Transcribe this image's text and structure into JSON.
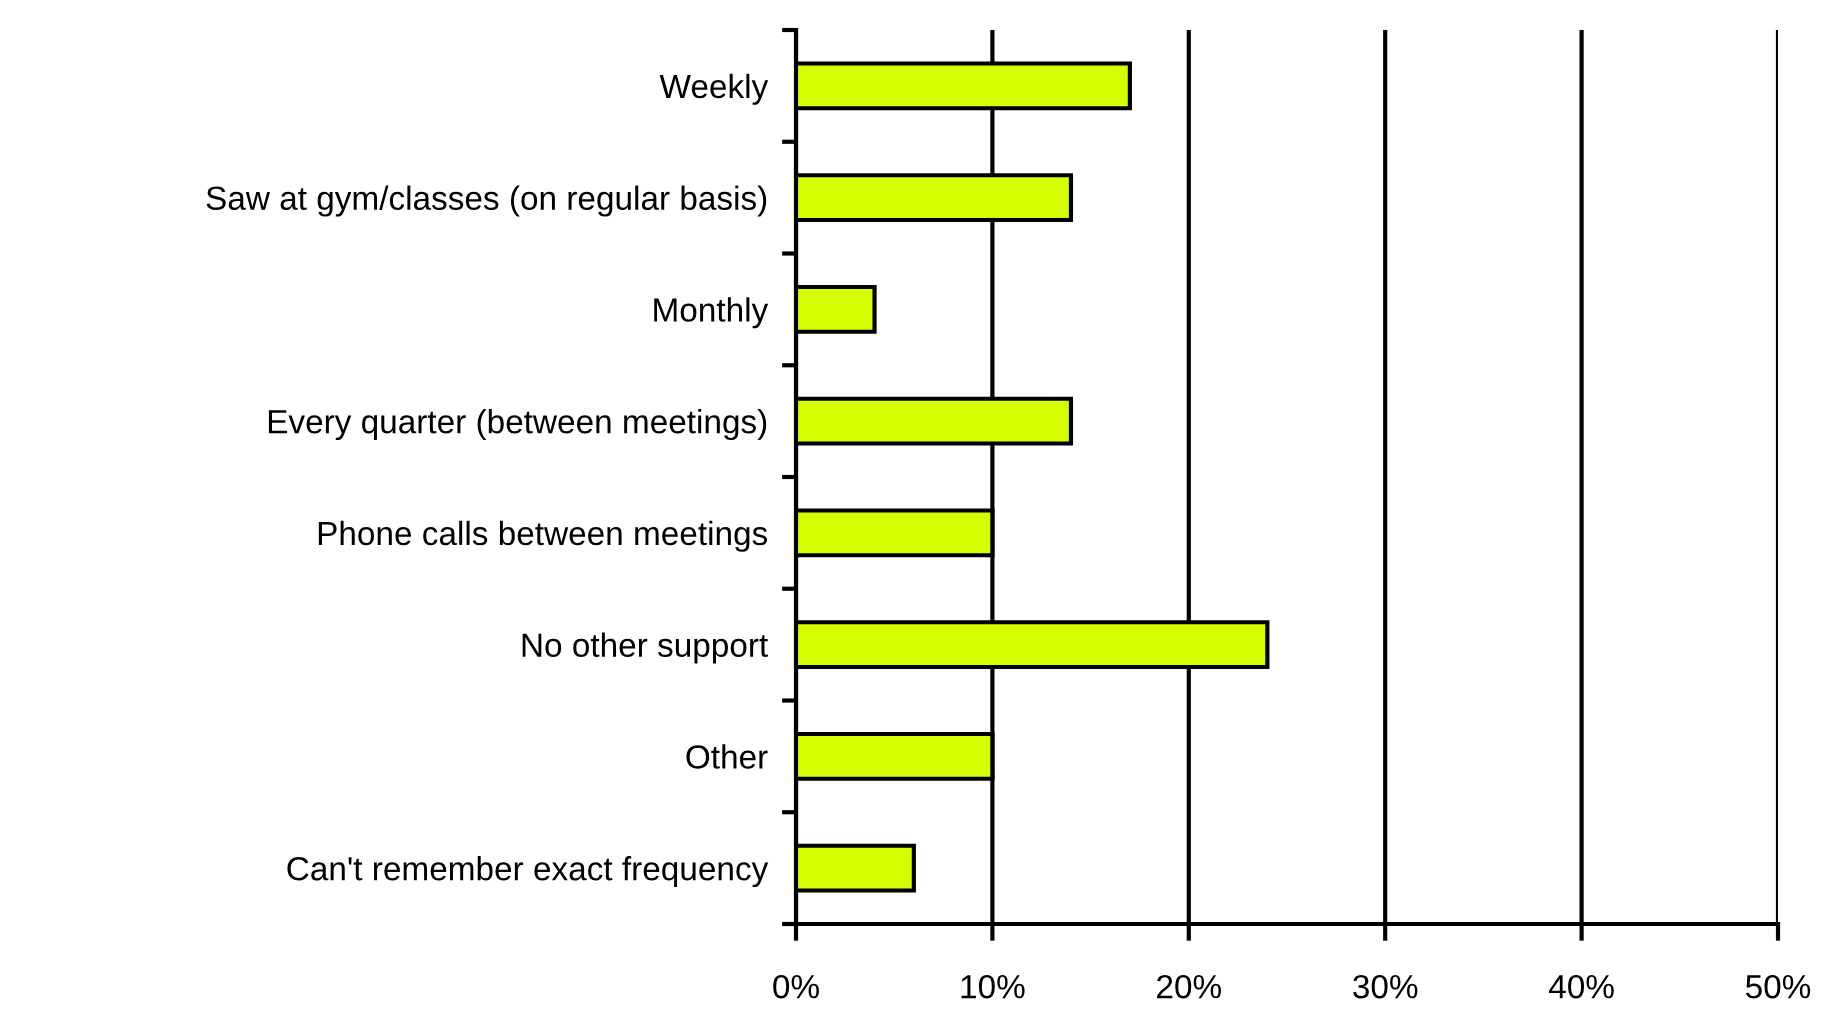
{
  "chart_data": {
    "type": "bar",
    "orientation": "horizontal",
    "categories": [
      "Weekly",
      "Saw at gym/classes (on regular basis)",
      "Monthly",
      "Every quarter (between meetings)",
      "Phone calls between meetings",
      "No other support",
      "Other",
      "Can't remember exact frequency"
    ],
    "values": [
      17,
      14,
      4,
      14,
      10,
      24,
      10,
      6
    ],
    "color": "#d4ff00",
    "xlim": [
      0,
      50
    ],
    "xticks": [
      {
        "value": 0,
        "label": "0%"
      },
      {
        "value": 10,
        "label": "10%"
      },
      {
        "value": 20,
        "label": "20%"
      },
      {
        "value": 30,
        "label": "30%"
      },
      {
        "value": 40,
        "label": "40%"
      },
      {
        "value": 50,
        "label": "50%"
      }
    ],
    "grid": "x"
  }
}
